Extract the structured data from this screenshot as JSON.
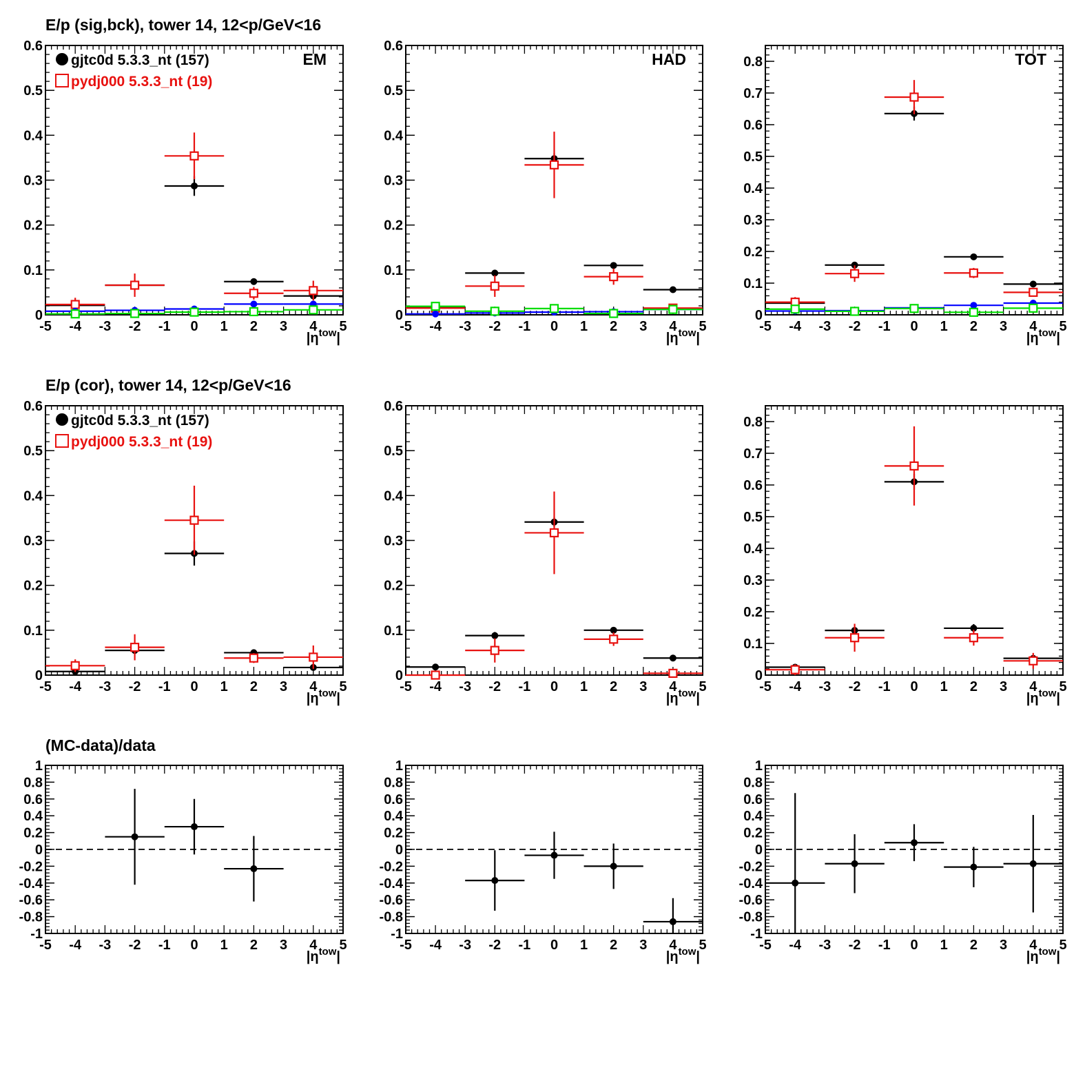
{
  "row_titles": [
    "E/p (sig,bck), tower 14, 12<p/GeV<16",
    "E/p (cor), tower 14, 12<p/GeV<16",
    "(MC-data)/data"
  ],
  "xlabel": "|η^tow|",
  "panel_labels": [
    "EM",
    "HAD",
    "TOT"
  ],
  "legend": [
    {
      "label": "gjtc0d 5.3.3_nt (157)",
      "color": "#000000",
      "marker": "filled-circle"
    },
    {
      "label": "pydj000 5.3.3_nt (19)",
      "color": "#e8110f",
      "marker": "open-square"
    }
  ],
  "colors": {
    "data": "#000000",
    "mc": "#e8110f",
    "data_bck": "#0000ff",
    "mc_bck": "#00dd00"
  },
  "chart_data": [
    {
      "type": "scatter",
      "name": "sig_bck_EM",
      "xlim": [
        -5,
        5
      ],
      "ylim": [
        0,
        0.6
      ],
      "yticks": [
        0,
        0.1,
        0.2,
        0.3,
        0.4,
        0.5,
        0.6
      ],
      "series": [
        {
          "name": "gjtc0d 5.3.3_nt (157)",
          "color": "#000000",
          "marker": "circle",
          "points": [
            [
              -4,
              0.021,
              0.006
            ],
            [
              -2,
              0.066,
              0.006
            ],
            [
              0,
              0.287,
              0.022
            ],
            [
              2,
              0.074,
              0.005
            ],
            [
              4,
              0.042,
              0.005
            ]
          ]
        },
        {
          "name": "pydj000 5.3.3_nt (19)",
          "color": "#e8110f",
          "marker": "square",
          "points": [
            [
              -4,
              0.023,
              0.015
            ],
            [
              -2,
              0.066,
              0.026
            ],
            [
              0,
              0.354,
              0.052
            ],
            [
              2,
              0.048,
              0.014
            ],
            [
              4,
              0.054,
              0.022
            ]
          ]
        },
        {
          "name": "",
          "color": "#0000ff",
          "marker": "circle",
          "points": [
            [
              -4,
              0.008,
              0.003
            ],
            [
              -2,
              0.01,
              0.003
            ],
            [
              0,
              0.013,
              0.004
            ],
            [
              2,
              0.024,
              0.004
            ],
            [
              4,
              0.024,
              0.004
            ]
          ]
        },
        {
          "name": "",
          "color": "#00dd00",
          "marker": "square",
          "points": [
            [
              -4,
              0.002,
              0.002
            ],
            [
              -2,
              0.003,
              0.003
            ],
            [
              0,
              0.006,
              0.004
            ],
            [
              2,
              0.007,
              0.004
            ],
            [
              4,
              0.011,
              0.005
            ]
          ]
        }
      ]
    },
    {
      "type": "scatter",
      "name": "sig_bck_HAD",
      "xlim": [
        -5,
        5
      ],
      "ylim": [
        0,
        0.6
      ],
      "yticks": [
        0,
        0.1,
        0.2,
        0.3,
        0.4,
        0.5,
        0.6
      ],
      "series": [
        {
          "name": "gjtc0d 5.3.3_nt (157)",
          "color": "#000000",
          "marker": "circle",
          "points": [
            [
              -4,
              0.017,
              0.003
            ],
            [
              -2,
              0.093,
              0.006
            ],
            [
              0,
              0.348,
              0.012
            ],
            [
              2,
              0.11,
              0.006
            ],
            [
              4,
              0.056,
              0.004
            ]
          ]
        },
        {
          "name": "pydj000 5.3.3_nt (19)",
          "color": "#e8110f",
          "marker": "square",
          "points": [
            [
              -4,
              0.015,
              0.008
            ],
            [
              -2,
              0.064,
              0.024
            ],
            [
              0,
              0.334,
              0.074
            ],
            [
              2,
              0.085,
              0.018
            ],
            [
              4,
              0.015,
              0.006
            ]
          ]
        },
        {
          "name": "",
          "color": "#0000ff",
          "marker": "circle",
          "points": [
            [
              -4,
              0.002,
              0.002
            ],
            [
              -2,
              0.004,
              0.002
            ],
            [
              0,
              0.006,
              0.002
            ],
            [
              2,
              0.007,
              0.002
            ],
            [
              4,
              0.012,
              0.002
            ]
          ]
        },
        {
          "name": "",
          "color": "#00dd00",
          "marker": "square",
          "points": [
            [
              -4,
              0.019,
              0.004
            ],
            [
              -2,
              0.008,
              0.003
            ],
            [
              0,
              0.014,
              0.004
            ],
            [
              2,
              0.003,
              0.003
            ],
            [
              4,
              0.012,
              0.004
            ]
          ]
        }
      ]
    },
    {
      "type": "scatter",
      "name": "sig_bck_TOT",
      "xlim": [
        -5,
        5
      ],
      "ylim": [
        0,
        0.85
      ],
      "yticks": [
        0,
        0.1,
        0.2,
        0.3,
        0.4,
        0.5,
        0.6,
        0.7,
        0.8
      ],
      "series": [
        {
          "name": "gjtc0d 5.3.3_nt (157)",
          "color": "#000000",
          "marker": "circle",
          "points": [
            [
              -4,
              0.037,
              0.006
            ],
            [
              -2,
              0.157,
              0.008
            ],
            [
              0,
              0.635,
              0.022
            ],
            [
              2,
              0.183,
              0.007
            ],
            [
              4,
              0.097,
              0.005
            ]
          ]
        },
        {
          "name": "pydj000 5.3.3_nt (19)",
          "color": "#e8110f",
          "marker": "square",
          "points": [
            [
              -4,
              0.04,
              0.016
            ],
            [
              -2,
              0.13,
              0.026
            ],
            [
              0,
              0.687,
              0.054
            ],
            [
              2,
              0.132,
              0.016
            ],
            [
              4,
              0.071,
              0.012
            ]
          ]
        },
        {
          "name": "",
          "color": "#0000ff",
          "marker": "circle",
          "points": [
            [
              -4,
              0.012,
              0.003
            ],
            [
              -2,
              0.013,
              0.003
            ],
            [
              0,
              0.022,
              0.004
            ],
            [
              2,
              0.03,
              0.004
            ],
            [
              4,
              0.037,
              0.004
            ]
          ]
        },
        {
          "name": "",
          "color": "#00dd00",
          "marker": "square",
          "points": [
            [
              -4,
              0.018,
              0.004
            ],
            [
              -2,
              0.011,
              0.003
            ],
            [
              0,
              0.02,
              0.004
            ],
            [
              2,
              0.008,
              0.003
            ],
            [
              4,
              0.021,
              0.004
            ]
          ]
        }
      ]
    },
    {
      "type": "scatter",
      "name": "cor_EM",
      "xlim": [
        -5,
        5
      ],
      "ylim": [
        0,
        0.6
      ],
      "yticks": [
        0,
        0.1,
        0.2,
        0.3,
        0.4,
        0.5,
        0.6
      ],
      "series": [
        {
          "name": "gjtc0d 5.3.3_nt (157)",
          "color": "#000000",
          "marker": "circle",
          "points": [
            [
              -4,
              0.008,
              0.005
            ],
            [
              -2,
              0.055,
              0.008
            ],
            [
              0,
              0.271,
              0.027
            ],
            [
              2,
              0.05,
              0.007
            ],
            [
              4,
              0.017,
              0.006
            ]
          ]
        },
        {
          "name": "pydj000 5.3.3_nt (19)",
          "color": "#e8110f",
          "marker": "square",
          "points": [
            [
              -4,
              0.021,
              0.014
            ],
            [
              -2,
              0.062,
              0.029
            ],
            [
              0,
              0.345,
              0.077
            ],
            [
              2,
              0.038,
              0.011
            ],
            [
              4,
              0.04,
              0.026
            ]
          ]
        }
      ]
    },
    {
      "type": "scatter",
      "name": "cor_HAD",
      "xlim": [
        -5,
        5
      ],
      "ylim": [
        0,
        0.6
      ],
      "yticks": [
        0,
        0.1,
        0.2,
        0.3,
        0.4,
        0.5,
        0.6
      ],
      "series": [
        {
          "name": "gjtc0d 5.3.3_nt (157)",
          "color": "#000000",
          "marker": "circle",
          "points": [
            [
              -4,
              0.018,
              0.003
            ],
            [
              -2,
              0.088,
              0.008
            ],
            [
              0,
              0.341,
              0.011
            ],
            [
              2,
              0.1,
              0.007
            ],
            [
              4,
              0.038,
              0.006
            ]
          ]
        },
        {
          "name": "pydj000 5.3.3_nt (19)",
          "color": "#e8110f",
          "marker": "square",
          "points": [
            [
              -4,
              0.0,
              0.0
            ],
            [
              -2,
              0.055,
              0.027
            ],
            [
              0,
              0.317,
              0.092
            ],
            [
              2,
              0.08,
              0.015
            ],
            [
              4,
              0.004,
              0.005
            ]
          ]
        }
      ]
    },
    {
      "type": "scatter",
      "name": "cor_TOT",
      "xlim": [
        -5,
        5
      ],
      "ylim": [
        0,
        0.85
      ],
      "yticks": [
        0,
        0.1,
        0.2,
        0.3,
        0.4,
        0.5,
        0.6,
        0.7,
        0.8
      ],
      "series": [
        {
          "name": "gjtc0d 5.3.3_nt (157)",
          "color": "#000000",
          "marker": "circle",
          "points": [
            [
              -4,
              0.025,
              0.006
            ],
            [
              -2,
              0.141,
              0.009
            ],
            [
              0,
              0.61,
              0.025
            ],
            [
              2,
              0.148,
              0.013
            ],
            [
              4,
              0.053,
              0.007
            ]
          ]
        },
        {
          "name": "pydj000 5.3.3_nt (19)",
          "color": "#e8110f",
          "marker": "square",
          "points": [
            [
              -4,
              0.017,
              0.017
            ],
            [
              -2,
              0.118,
              0.044
            ],
            [
              0,
              0.66,
              0.125
            ],
            [
              2,
              0.118,
              0.025
            ],
            [
              4,
              0.045,
              0.025
            ]
          ]
        }
      ]
    },
    {
      "type": "scatter",
      "name": "ratio_EM",
      "xlim": [
        -5,
        5
      ],
      "ylim": [
        -1,
        1
      ],
      "yticks": [
        -1,
        -0.8,
        -0.6,
        -0.4,
        -0.2,
        0,
        0.2,
        0.4,
        0.6,
        0.8,
        1
      ],
      "reference_line": 0,
      "series": [
        {
          "name": "",
          "color": "#000000",
          "marker": "circle",
          "points": [
            [
              -2,
              0.15,
              0.57
            ],
            [
              0,
              0.27,
              0.33
            ],
            [
              2,
              -0.23,
              0.39
            ]
          ]
        }
      ]
    },
    {
      "type": "scatter",
      "name": "ratio_HAD",
      "xlim": [
        -5,
        5
      ],
      "ylim": [
        -1,
        1
      ],
      "yticks": [
        -1,
        -0.8,
        -0.6,
        -0.4,
        -0.2,
        0,
        0.2,
        0.4,
        0.6,
        0.8,
        1
      ],
      "reference_line": 0,
      "series": [
        {
          "name": "",
          "color": "#000000",
          "marker": "circle",
          "points": [
            [
              -2,
              -0.37,
              0.36
            ],
            [
              0,
              -0.07,
              0.28
            ],
            [
              2,
              -0.2,
              0.27
            ],
            [
              4,
              -0.86,
              0.28
            ]
          ]
        }
      ]
    },
    {
      "type": "scatter",
      "name": "ratio_TOT",
      "xlim": [
        -5,
        5
      ],
      "ylim": [
        -1,
        1
      ],
      "yticks": [
        -1,
        -0.8,
        -0.6,
        -0.4,
        -0.2,
        0,
        0.2,
        0.4,
        0.6,
        0.8,
        1
      ],
      "reference_line": 0,
      "series": [
        {
          "name": "",
          "color": "#000000",
          "marker": "circle",
          "points": [
            [
              -4,
              -0.4,
              1.07
            ],
            [
              -2,
              -0.17,
              0.35
            ],
            [
              0,
              0.08,
              0.22
            ],
            [
              2,
              -0.21,
              0.24
            ],
            [
              4,
              -0.17,
              0.58
            ]
          ]
        }
      ]
    }
  ]
}
